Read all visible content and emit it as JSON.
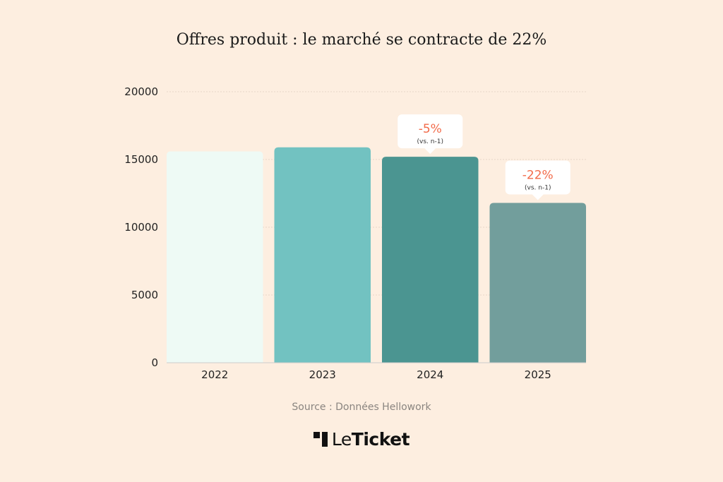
{
  "chart_data": {
    "type": "bar",
    "title": "Offres produit : le marché se contracte de 22%",
    "categories": [
      "2022",
      "2023",
      "2024",
      "2025"
    ],
    "values": [
      15600,
      15900,
      15200,
      11800
    ],
    "ylim": [
      0,
      20000
    ],
    "yticks": [
      0,
      5000,
      10000,
      15000,
      20000
    ],
    "grid": true,
    "xlabel": "",
    "ylabel": "",
    "bar_colors": [
      "#eefaf5",
      "#72c2c1",
      "#4b9591",
      "#729e9c"
    ],
    "annotations": [
      {
        "category": "2024",
        "value": "-5%",
        "note": "(vs. n-1)"
      },
      {
        "category": "2025",
        "value": "-22%",
        "note": "(vs. n-1)"
      }
    ],
    "annotation_color": "#f26b4a"
  },
  "footer": {
    "source": "Source : Données Hellowork",
    "logo_light": "Le",
    "logo_bold": "Ticket"
  }
}
